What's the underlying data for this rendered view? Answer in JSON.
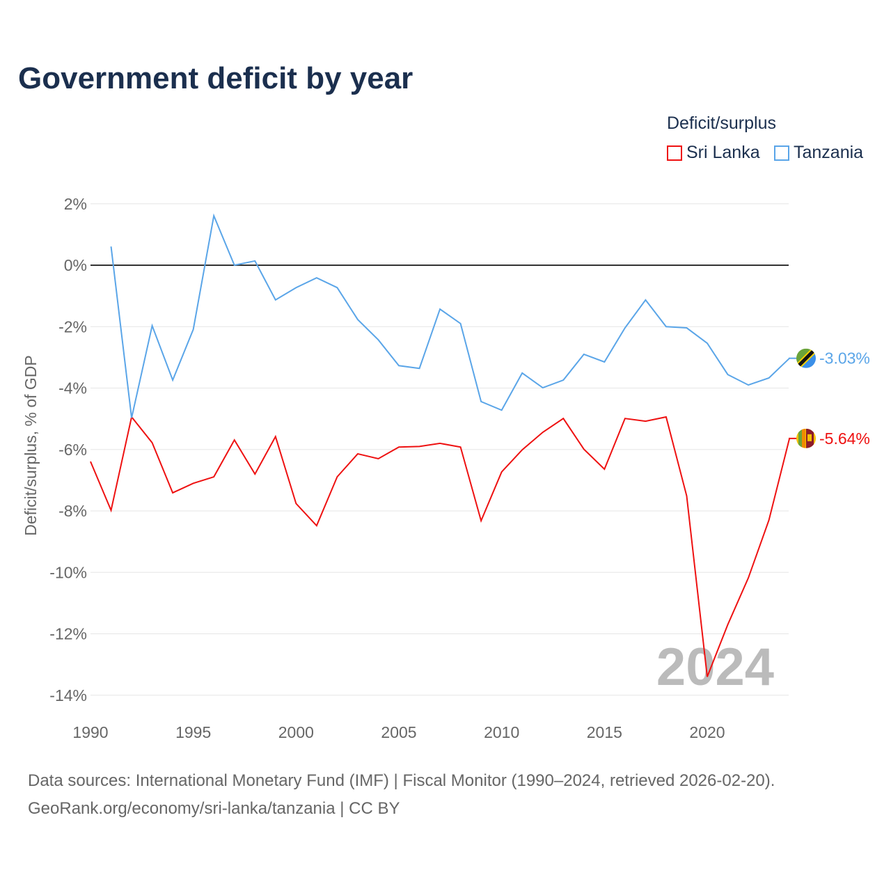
{
  "title": "Government deficit by year",
  "footer": {
    "line1": "Data sources: International Monetary Fund (IMF) | Fiscal Monitor (1990–2024, retrieved 2026-02-20).",
    "line2": "GeoRank.org/economy/sri-lanka/tanzania | CC BY"
  },
  "chart_data": {
    "type": "line",
    "title": "Government deficit by year",
    "ylabel": "Deficit/surplus, % of GDP",
    "xlabel": "",
    "legend_title": "Deficit/surplus",
    "legend_position": "top-right",
    "year_watermark": "2024",
    "xlim": [
      1990,
      2024
    ],
    "ylim": [
      -14,
      2
    ],
    "xticks": [
      1990,
      1995,
      2000,
      2005,
      2010,
      2015,
      2020
    ],
    "yticks": [
      2,
      0,
      -2,
      -4,
      -6,
      -8,
      -10,
      -12,
      -14
    ],
    "ytick_labels": [
      "2%",
      "0%",
      "-2%",
      "-4%",
      "-6%",
      "-8%",
      "-10%",
      "-12%",
      "-14%"
    ],
    "series": [
      {
        "name": "Sri Lanka",
        "color": "#ee1111",
        "end_label": "-5.64%",
        "start": 1990,
        "values": [
          -6.39,
          -7.98,
          -4.94,
          -5.78,
          -7.41,
          -7.1,
          -6.89,
          -5.69,
          -6.8,
          -5.58,
          -7.76,
          -8.48,
          -6.89,
          -6.14,
          -6.3,
          -5.92,
          -5.9,
          -5.8,
          -5.92,
          -8.32,
          -6.73,
          -6.01,
          -5.44,
          -4.99,
          -5.99,
          -6.64,
          -4.99,
          -5.08,
          -4.94,
          -7.51,
          -13.4,
          -11.7,
          -10.18,
          -8.3,
          -5.64
        ]
      },
      {
        "name": "Tanzania",
        "color": "#5aa5e8",
        "end_label": "-3.03%",
        "start": 1991,
        "values": [
          0.61,
          -4.97,
          -1.97,
          -3.74,
          -2.09,
          1.61,
          0.0,
          0.14,
          -1.13,
          -0.73,
          -0.41,
          -0.73,
          -1.77,
          -2.43,
          -3.27,
          -3.36,
          -1.43,
          -1.9,
          -4.44,
          -4.72,
          -3.51,
          -3.99,
          -3.74,
          -2.9,
          -3.15,
          -2.04,
          -1.13,
          -2.0,
          -2.04,
          -2.54,
          -3.56,
          -3.9,
          -3.67,
          -3.03
        ]
      }
    ]
  }
}
